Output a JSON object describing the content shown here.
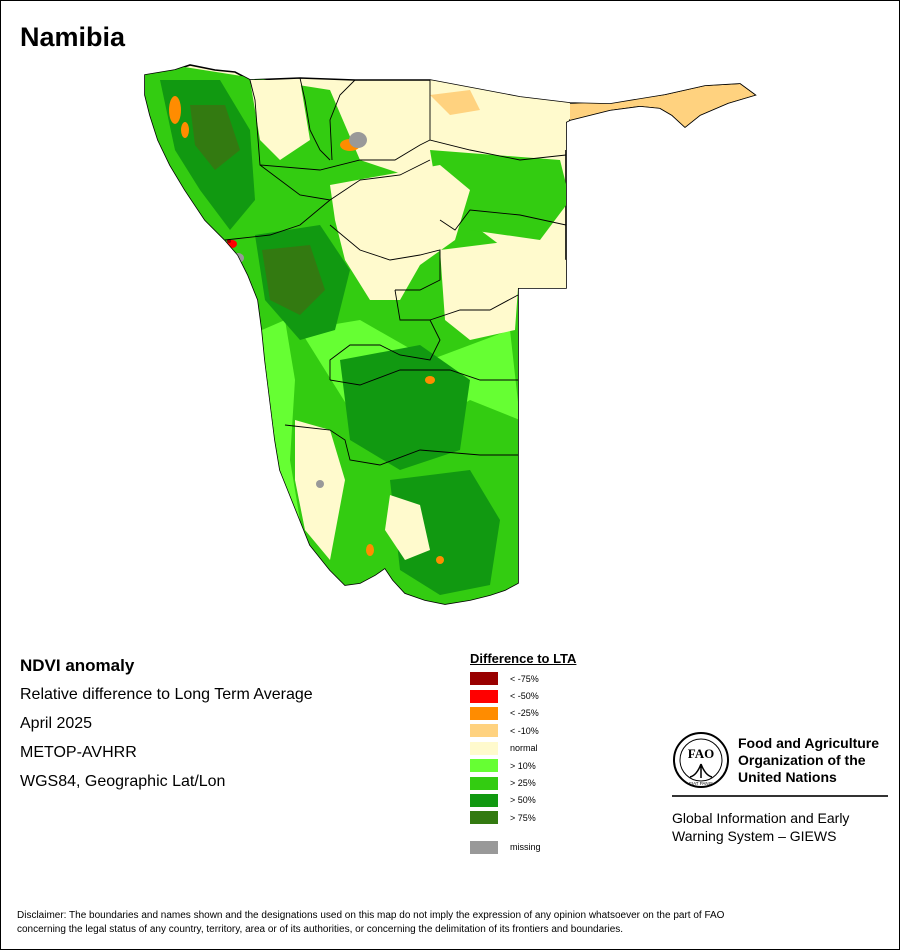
{
  "map_title": "Namibia",
  "info": {
    "heading": "NDVI anomaly",
    "lines": [
      "Relative difference to Long Term Average",
      "April 2025",
      "METOP-AVHRR",
      "WGS84, Geographic Lat/Lon"
    ]
  },
  "legend": {
    "title": "Difference to LTA",
    "items": [
      {
        "label": "< -75%",
        "color": "#990000"
      },
      {
        "label": "< -50%",
        "color": "#ff0000"
      },
      {
        "label": "< -25%",
        "color": "#ff8c00"
      },
      {
        "label": "< -10%",
        "color": "#ffd27f"
      },
      {
        "label": "normal",
        "color": "#fffacd"
      },
      {
        "label": "> 10%",
        "color": "#66ff33"
      },
      {
        "label": "> 25%",
        "color": "#33cc11"
      },
      {
        "label": "> 50%",
        "color": "#119911"
      },
      {
        "label": "> 75%",
        "color": "#337a11"
      }
    ],
    "missing": {
      "label": "missing",
      "color": "#999999"
    }
  },
  "fao": {
    "logo_text": "FAO",
    "logo_motto": "FIAT PANIS",
    "org_name": [
      "Food and Agriculture",
      "Organization of the",
      "United Nations"
    ],
    "giews": [
      "Global Information and Early",
      "Warning System – GIEWS"
    ]
  },
  "disclaimer": [
    "Disclaimer: The boundaries and names shown and the designations used on this map do not imply the expression of any opinion whatsoever on the part of FAO",
    "concerning the legal status of any country, territory, area or of its authorities, or concerning the delimitation of its frontiers and boundaries."
  ]
}
